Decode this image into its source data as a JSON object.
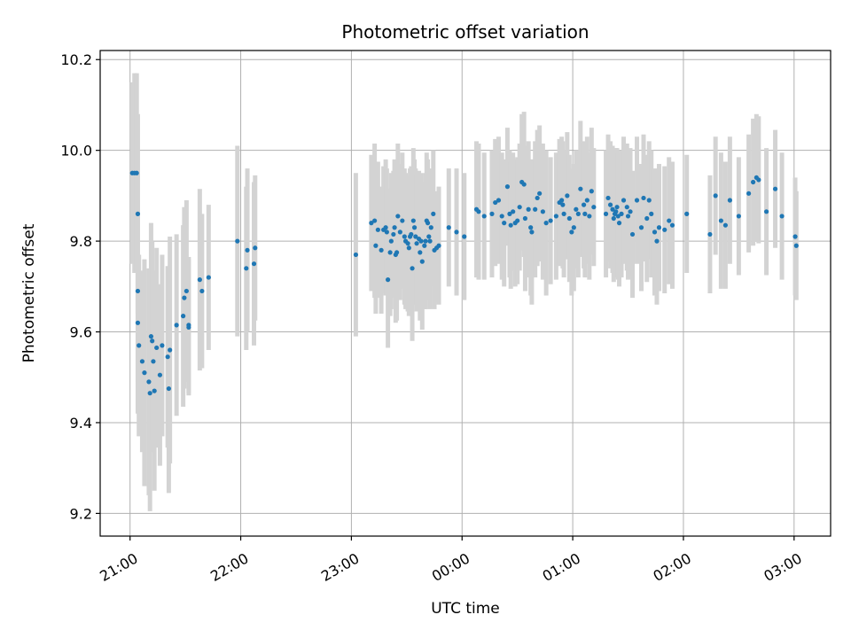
{
  "chart_data": {
    "type": "scatter",
    "title": "Photometric offset variation",
    "xlabel": "UTC time",
    "ylabel": "Photometric offset",
    "x_unit": "hours (UTC clock; values past 24 are after midnight)",
    "xlim": [
      20.73,
      27.33
    ],
    "ylim": [
      9.15,
      10.22
    ],
    "x_ticks": [
      21,
      22,
      23,
      24,
      25,
      26,
      27
    ],
    "x_tick_labels": [
      "21:00",
      "22:00",
      "23:00",
      "00:00",
      "01:00",
      "02:00",
      "03:00"
    ],
    "y_ticks": [
      9.2,
      9.4,
      9.6,
      9.8,
      10.0,
      10.2
    ],
    "y_tick_labels": [
      "9.2",
      "9.4",
      "9.6",
      "9.8",
      "10.0",
      "10.2"
    ],
    "grid": true,
    "legend": "none",
    "colors": {
      "points": "#1f77b4",
      "error_bars": "#d3d3d3",
      "grid": "#b0b0b0"
    },
    "series": [
      {
        "points": [
          [
            21.02,
            9.95,
            0.2
          ],
          [
            21.04,
            9.95,
            0.22
          ],
          [
            21.06,
            9.95,
            0.22
          ],
          [
            21.07,
            9.86,
            0.22
          ],
          [
            21.07,
            9.69,
            0.2
          ],
          [
            21.07,
            9.62,
            0.2
          ],
          [
            21.08,
            9.57,
            0.2
          ],
          [
            21.11,
            9.535,
            0.2
          ],
          [
            21.13,
            9.51,
            0.25
          ],
          [
            21.17,
            9.49,
            0.25
          ],
          [
            21.18,
            9.465,
            0.26
          ],
          [
            21.19,
            9.59,
            0.25
          ],
          [
            21.2,
            9.58,
            0.22
          ],
          [
            21.21,
            9.535,
            0.2
          ],
          [
            21.22,
            9.47,
            0.22
          ],
          [
            21.24,
            9.565,
            0.22
          ],
          [
            21.27,
            9.505,
            0.2
          ],
          [
            21.29,
            9.57,
            0.2
          ],
          [
            21.34,
            9.545,
            0.2
          ],
          [
            21.35,
            9.475,
            0.23
          ],
          [
            21.36,
            9.56,
            0.25
          ],
          [
            21.42,
            9.615,
            0.2
          ],
          [
            21.48,
            9.635,
            0.2
          ],
          [
            21.49,
            9.675,
            0.2
          ],
          [
            21.51,
            9.69,
            0.2
          ],
          [
            21.53,
            9.61,
            0.15
          ],
          [
            21.53,
            9.615,
            0.15
          ],
          [
            21.63,
            9.715,
            0.2
          ],
          [
            21.65,
            9.69,
            0.17
          ],
          [
            21.71,
            9.72,
            0.16
          ],
          [
            21.97,
            9.8,
            0.21
          ],
          [
            22.05,
            9.74,
            0.18
          ],
          [
            22.06,
            9.78,
            0.18
          ],
          [
            22.12,
            9.75,
            0.18
          ],
          [
            22.13,
            9.785,
            0.16
          ],
          [
            23.04,
            9.77,
            0.18
          ],
          [
            23.18,
            9.84,
            0.15
          ],
          [
            23.21,
            9.845,
            0.17
          ],
          [
            23.22,
            9.79,
            0.15
          ],
          [
            23.24,
            9.825,
            0.15
          ],
          [
            23.27,
            9.78,
            0.14
          ],
          [
            23.29,
            9.825,
            0.14
          ],
          [
            23.31,
            9.83,
            0.15
          ],
          [
            23.32,
            9.82,
            0.14
          ],
          [
            23.33,
            9.715,
            0.15
          ],
          [
            23.35,
            9.775,
            0.14
          ],
          [
            23.36,
            9.8,
            0.15
          ],
          [
            23.38,
            9.815,
            0.14
          ],
          [
            23.39,
            9.83,
            0.15
          ],
          [
            23.4,
            9.77,
            0.15
          ],
          [
            23.41,
            9.775,
            0.15
          ],
          [
            23.42,
            9.855,
            0.16
          ],
          [
            23.44,
            9.82,
            0.15
          ],
          [
            23.46,
            9.845,
            0.15
          ],
          [
            23.48,
            9.81,
            0.15
          ],
          [
            23.49,
            9.8,
            0.15
          ],
          [
            23.51,
            9.795,
            0.15
          ],
          [
            23.52,
            9.785,
            0.15
          ],
          [
            23.53,
            9.81,
            0.15
          ],
          [
            23.54,
            9.815,
            0.15
          ],
          [
            23.55,
            9.74,
            0.16
          ],
          [
            23.56,
            9.845,
            0.16
          ],
          [
            23.57,
            9.83,
            0.15
          ],
          [
            23.58,
            9.81,
            0.15
          ],
          [
            23.59,
            9.795,
            0.15
          ],
          [
            23.61,
            9.805,
            0.15
          ],
          [
            23.62,
            9.775,
            0.15
          ],
          [
            23.63,
            9.8,
            0.15
          ],
          [
            23.64,
            9.755,
            0.15
          ],
          [
            23.66,
            9.79,
            0.14
          ],
          [
            23.67,
            9.8,
            0.15
          ],
          [
            23.68,
            9.845,
            0.15
          ],
          [
            23.69,
            9.84,
            0.14
          ],
          [
            23.7,
            9.81,
            0.14
          ],
          [
            23.71,
            9.8,
            0.15
          ],
          [
            23.72,
            9.83,
            0.13
          ],
          [
            23.74,
            9.86,
            0.14
          ],
          [
            23.75,
            9.78,
            0.13
          ],
          [
            23.77,
            9.785,
            0.12
          ],
          [
            23.79,
            9.79,
            0.13
          ],
          [
            23.88,
            9.83,
            0.13
          ],
          [
            23.95,
            9.82,
            0.14
          ],
          [
            24.02,
            9.81,
            0.14
          ],
          [
            24.13,
            9.87,
            0.15
          ],
          [
            24.15,
            9.865,
            0.15
          ],
          [
            24.2,
            9.855,
            0.14
          ],
          [
            24.27,
            9.86,
            0.14
          ],
          [
            24.3,
            9.885,
            0.14
          ],
          [
            24.33,
            9.89,
            0.14
          ],
          [
            24.36,
            9.855,
            0.14
          ],
          [
            24.38,
            9.84,
            0.14
          ],
          [
            24.41,
            9.92,
            0.13
          ],
          [
            24.43,
            9.86,
            0.14
          ],
          [
            24.44,
            9.835,
            0.14
          ],
          [
            24.46,
            9.865,
            0.13
          ],
          [
            24.48,
            9.84,
            0.14
          ],
          [
            24.5,
            9.845,
            0.14
          ],
          [
            24.52,
            9.875,
            0.14
          ],
          [
            24.54,
            9.93,
            0.15
          ],
          [
            24.56,
            9.925,
            0.16
          ],
          [
            24.57,
            9.85,
            0.16
          ],
          [
            24.6,
            9.87,
            0.15
          ],
          [
            24.62,
            9.83,
            0.15
          ],
          [
            24.63,
            9.82,
            0.16
          ],
          [
            24.66,
            9.87,
            0.15
          ],
          [
            24.68,
            9.895,
            0.15
          ],
          [
            24.7,
            9.905,
            0.15
          ],
          [
            24.73,
            9.865,
            0.15
          ],
          [
            24.76,
            9.84,
            0.16
          ],
          [
            24.8,
            9.845,
            0.14
          ],
          [
            24.85,
            9.855,
            0.14
          ],
          [
            24.88,
            9.885,
            0.14
          ],
          [
            24.9,
            9.89,
            0.14
          ],
          [
            24.91,
            9.88,
            0.14
          ],
          [
            24.92,
            9.86,
            0.14
          ],
          [
            24.95,
            9.9,
            0.14
          ],
          [
            24.97,
            9.85,
            0.14
          ],
          [
            24.99,
            9.82,
            0.14
          ],
          [
            25.01,
            9.83,
            0.14
          ],
          [
            25.03,
            9.87,
            0.13
          ],
          [
            25.05,
            9.86,
            0.14
          ],
          [
            25.07,
            9.915,
            0.15
          ],
          [
            25.1,
            9.88,
            0.14
          ],
          [
            25.11,
            9.86,
            0.14
          ],
          [
            25.13,
            9.89,
            0.14
          ],
          [
            25.15,
            9.855,
            0.14
          ],
          [
            25.17,
            9.91,
            0.14
          ],
          [
            25.19,
            9.875,
            0.13
          ],
          [
            25.3,
            9.86,
            0.14
          ],
          [
            25.32,
            9.895,
            0.14
          ],
          [
            25.34,
            9.88,
            0.14
          ],
          [
            25.36,
            9.87,
            0.14
          ],
          [
            25.37,
            9.85,
            0.14
          ],
          [
            25.38,
            9.86,
            0.14
          ],
          [
            25.39,
            9.865,
            0.14
          ],
          [
            25.4,
            9.875,
            0.13
          ],
          [
            25.41,
            9.855,
            0.14
          ],
          [
            25.42,
            9.84,
            0.14
          ],
          [
            25.44,
            9.86,
            0.14
          ],
          [
            25.46,
            9.89,
            0.14
          ],
          [
            25.49,
            9.875,
            0.14
          ],
          [
            25.5,
            9.855,
            0.14
          ],
          [
            25.52,
            9.865,
            0.14
          ],
          [
            25.54,
            9.815,
            0.14
          ],
          [
            25.58,
            9.89,
            0.14
          ],
          [
            25.62,
            9.83,
            0.14
          ],
          [
            25.64,
            9.895,
            0.14
          ],
          [
            25.67,
            9.85,
            0.14
          ],
          [
            25.69,
            9.89,
            0.13
          ],
          [
            25.71,
            9.86,
            0.14
          ],
          [
            25.74,
            9.82,
            0.14
          ],
          [
            25.76,
            9.8,
            0.14
          ],
          [
            25.78,
            9.83,
            0.14
          ],
          [
            25.83,
            9.825,
            0.14
          ],
          [
            25.87,
            9.845,
            0.14
          ],
          [
            25.9,
            9.835,
            0.14
          ],
          [
            26.03,
            9.86,
            0.13
          ],
          [
            26.24,
            9.815,
            0.13
          ],
          [
            26.29,
            9.9,
            0.13
          ],
          [
            26.34,
            9.845,
            0.15
          ],
          [
            26.38,
            9.835,
            0.14
          ],
          [
            26.42,
            9.89,
            0.14
          ],
          [
            26.5,
            9.855,
            0.13
          ],
          [
            26.59,
            9.905,
            0.13
          ],
          [
            26.63,
            9.93,
            0.14
          ],
          [
            26.66,
            9.94,
            0.14
          ],
          [
            26.68,
            9.935,
            0.14
          ],
          [
            26.75,
            9.865,
            0.14
          ],
          [
            26.83,
            9.915,
            0.13
          ],
          [
            26.89,
            9.855,
            0.14
          ],
          [
            27.01,
            9.81,
            0.13
          ],
          [
            27.02,
            9.79,
            0.12
          ]
        ]
      }
    ]
  }
}
